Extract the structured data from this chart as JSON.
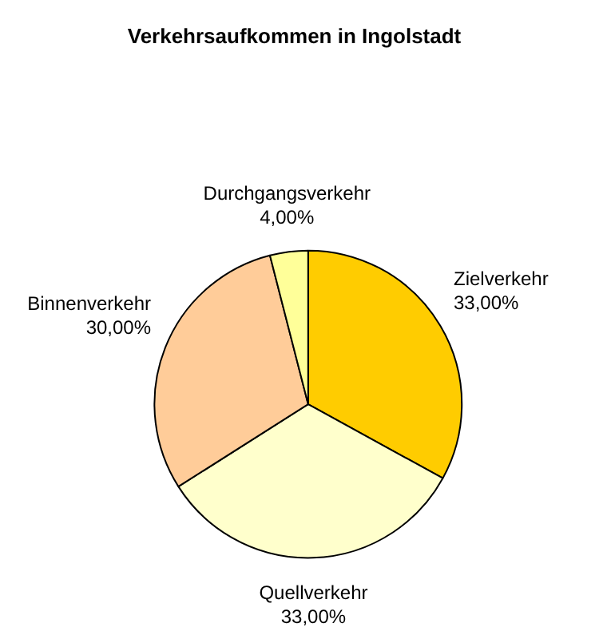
{
  "chart_data": {
    "type": "pie",
    "title": "Verkehrsaufkommen in Ingolstadt",
    "categories": [
      "Zielverkehr",
      "Quellverkehr",
      "Binnenverkehr",
      "Durchgangsverkehr"
    ],
    "values": [
      33,
      33,
      30,
      4
    ],
    "value_labels": [
      "33,00%",
      "33,00%",
      "30,00%",
      "4,00%"
    ],
    "colors": [
      "#ffcc00",
      "#ffffcc",
      "#ffcc99",
      "#ffff99"
    ]
  }
}
